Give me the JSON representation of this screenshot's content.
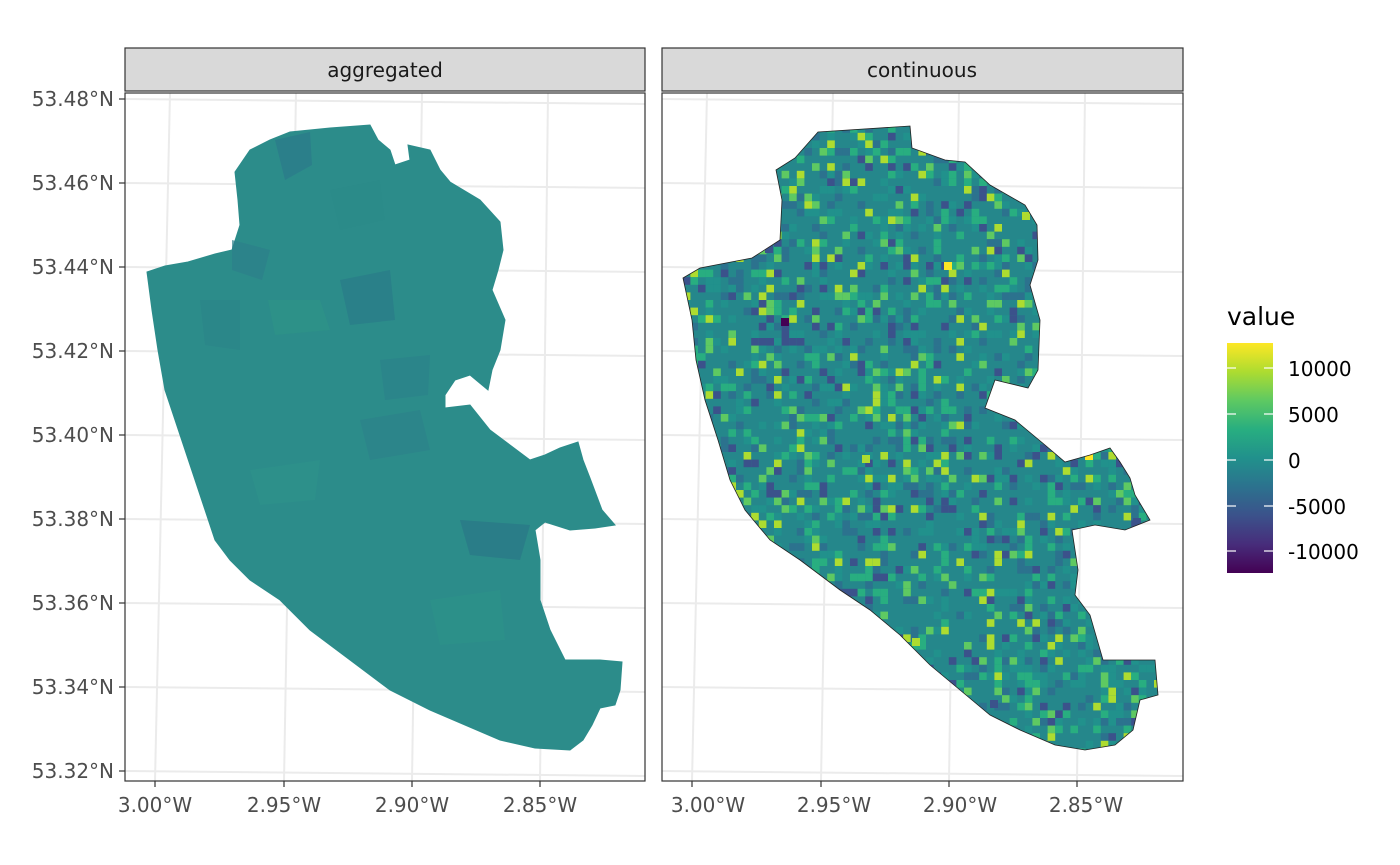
{
  "panels": [
    {
      "id": "aggregated",
      "label": "aggregated"
    },
    {
      "id": "continuous",
      "label": "continuous"
    }
  ],
  "y_tick_labels": [
    "53.48°N",
    "53.46°N",
    "53.44°N",
    "53.42°N",
    "53.40°N",
    "53.38°N",
    "53.36°N",
    "53.34°N",
    "53.32°N"
  ],
  "x_tick_labels": [
    "3.00°W",
    "2.95°W",
    "2.90°W",
    "2.85°W"
  ],
  "legend": {
    "title": "value",
    "labels": [
      "10000",
      "5000",
      "0",
      "-5000",
      "-10000"
    ],
    "colors": [
      "#440154",
      "#3b528b",
      "#21918c",
      "#5ec962",
      "#fde725"
    ]
  },
  "chart_data": {
    "type": "heatmap",
    "facets": [
      "aggregated",
      "continuous"
    ],
    "value_range": [
      -12000,
      13500
    ],
    "legend_breaks": [
      10000,
      5000,
      0,
      -5000,
      -10000
    ],
    "x_ticks": [
      -3.0,
      -2.95,
      -2.9,
      -2.85
    ],
    "y_ticks": [
      53.48,
      53.46,
      53.44,
      53.42,
      53.4,
      53.38,
      53.36,
      53.34,
      53.32
    ],
    "colors": {
      "aggregated_fill": "#2c8c8a",
      "panel_grid": "#ebebeb",
      "strip_fill": "#d9d9d9",
      "panel_border": "#333333"
    },
    "grid": true,
    "legend_position": "right"
  }
}
